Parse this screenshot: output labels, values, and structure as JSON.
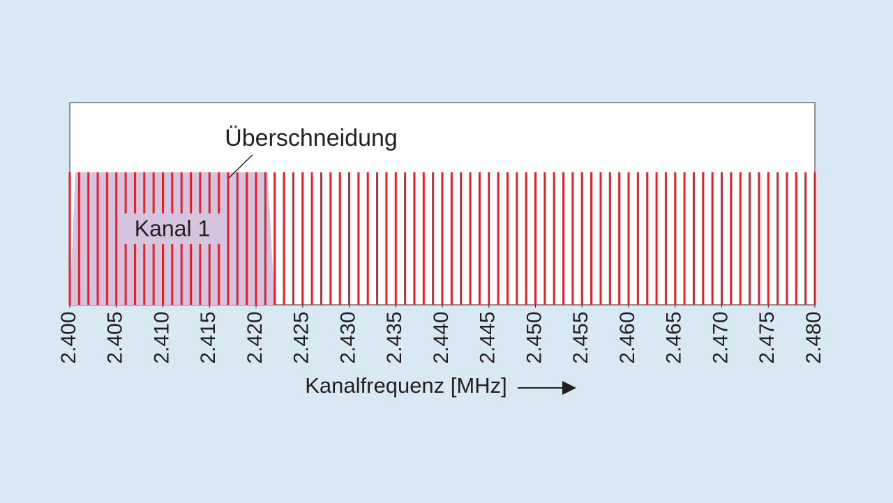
{
  "chart_data": {
    "type": "channels",
    "title": "Überschneidung",
    "x_label": "Kanalfrequenz [MHz]",
    "color": "#e3202a",
    "highlight": {
      "label": "Kanal 1",
      "range": [
        2.4,
        2.422
      ],
      "color": "#d6c3dd"
    },
    "xlim": [
      2.4,
      2.48
    ],
    "xticks": [
      {
        "value": 2.4,
        "label": "2.400"
      },
      {
        "value": 2.405,
        "label": "2.405"
      },
      {
        "value": 2.41,
        "label": "2.410"
      },
      {
        "value": 2.415,
        "label": "2.415"
      },
      {
        "value": 2.42,
        "label": "2.420"
      },
      {
        "value": 2.425,
        "label": "2.425"
      },
      {
        "value": 2.43,
        "label": "2.430"
      },
      {
        "value": 2.435,
        "label": "2.435"
      },
      {
        "value": 2.44,
        "label": "2.440"
      },
      {
        "value": 2.445,
        "label": "2.445"
      },
      {
        "value": 2.45,
        "label": "2.450"
      },
      {
        "value": 2.455,
        "label": "2.455"
      },
      {
        "value": 2.46,
        "label": "2.460"
      },
      {
        "value": 2.465,
        "label": "2.465"
      },
      {
        "value": 2.47,
        "label": "2.470"
      },
      {
        "value": 2.475,
        "label": "2.475"
      },
      {
        "value": 2.48,
        "label": "2.480"
      }
    ],
    "x": [
      2.4,
      2.401,
      2.402,
      2.403,
      2.404,
      2.405,
      2.406,
      2.407,
      2.408,
      2.409,
      2.41,
      2.411,
      2.412,
      2.413,
      2.414,
      2.415,
      2.416,
      2.417,
      2.418,
      2.419,
      2.42,
      2.421,
      2.422,
      2.423,
      2.424,
      2.425,
      2.426,
      2.427,
      2.428,
      2.429,
      2.43,
      2.431,
      2.432,
      2.433,
      2.434,
      2.435,
      2.436,
      2.437,
      2.438,
      2.439,
      2.44,
      2.441,
      2.442,
      2.443,
      2.444,
      2.445,
      2.446,
      2.447,
      2.448,
      2.449,
      2.45,
      2.451,
      2.452,
      2.453,
      2.454,
      2.455,
      2.456,
      2.457,
      2.458,
      2.459,
      2.46,
      2.461,
      2.462,
      2.463,
      2.464,
      2.465,
      2.466,
      2.467,
      2.468,
      2.469,
      2.47,
      2.471,
      2.472,
      2.473,
      2.474,
      2.475,
      2.476,
      2.477,
      2.478,
      2.479,
      2.48
    ]
  }
}
